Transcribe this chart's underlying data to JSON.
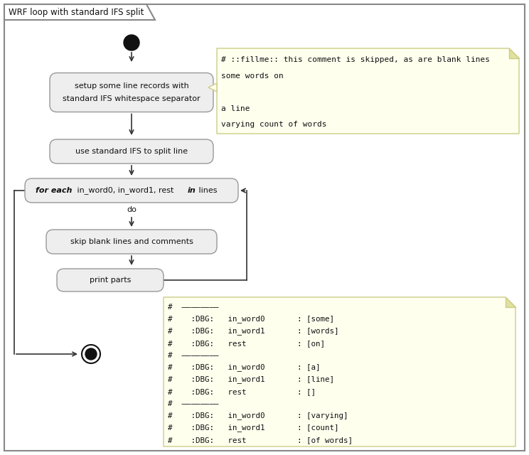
{
  "title": "WRF loop with standard IFS split",
  "bg_color": "#ffffff",
  "node_bg": "#eeeeee",
  "node_border": "#999999",
  "note_bg": "#ffffee",
  "note_border": "#cccc88",
  "note1_lines": [
    "# ::fillme:: this comment is skipped, as are blank lines",
    "some words on",
    "",
    "a line",
    "varying count of words"
  ],
  "note2_lines": [
    "#  ————————",
    "#    :DBG:   in_word0       : [some]",
    "#    :DBG:   in_word1       : [words]",
    "#    :DBG:   rest           : [on]",
    "#  ————————",
    "#    :DBG:   in_word0       : [a]",
    "#    :DBG:   in_word1       : [line]",
    "#    :DBG:   rest           : []",
    "#  ————————",
    "#    :DBG:   in_word0       : [varying]",
    "#    :DBG:   in_word1       : [count]",
    "#    :DBG:   rest           : [of words]"
  ]
}
